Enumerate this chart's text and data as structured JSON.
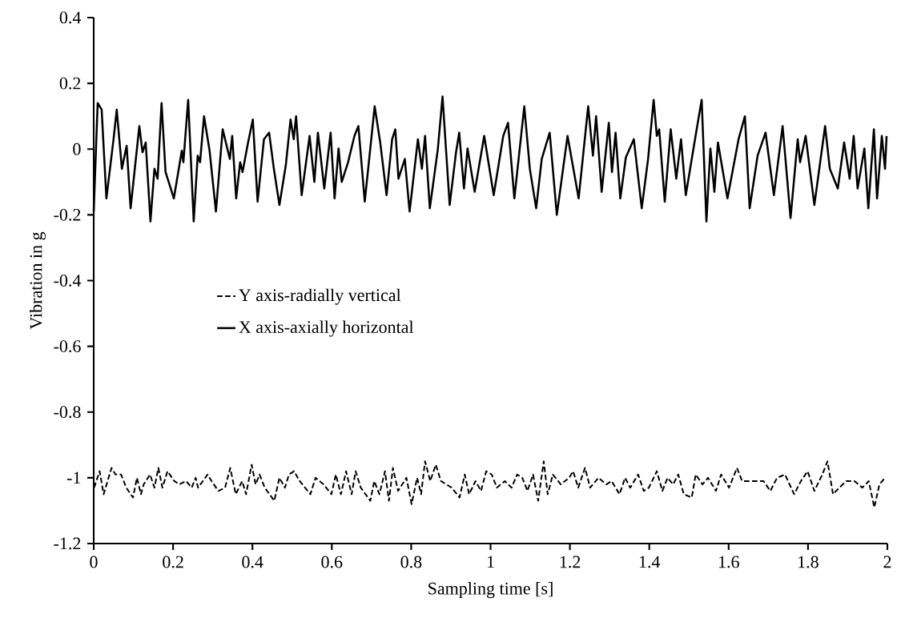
{
  "chart_data": {
    "type": "line",
    "xlabel": "Sampling time [s]",
    "ylabel": "Vibration in g",
    "xlim": [
      0,
      2
    ],
    "xticks": [
      0,
      0.2,
      0.4,
      0.6,
      0.8,
      1,
      1.2,
      1.4,
      1.6,
      1.8,
      2
    ],
    "ylim": [
      -1.2,
      0.4
    ],
    "yticks": [
      -1.2,
      -1,
      -0.8,
      -0.6,
      -0.4,
      -0.2,
      0,
      0.2,
      0.4
    ],
    "grid": false,
    "legend": "left",
    "marker": "none",
    "series": [
      {
        "name": "Y axis-radially vertical",
        "color": "#000000",
        "line_style": "dashed",
        "x": [
          0.001,
          0.015,
          0.025,
          0.045,
          0.055,
          0.069,
          0.082,
          0.099,
          0.109,
          0.119,
          0.126,
          0.142,
          0.153,
          0.163,
          0.173,
          0.186,
          0.203,
          0.216,
          0.233,
          0.247,
          0.257,
          0.263,
          0.287,
          0.297,
          0.314,
          0.331,
          0.344,
          0.358,
          0.374,
          0.384,
          0.398,
          0.408,
          0.418,
          0.431,
          0.455,
          0.468,
          0.482,
          0.492,
          0.505,
          0.519,
          0.546,
          0.559,
          0.579,
          0.599,
          0.61,
          0.623,
          0.636,
          0.65,
          0.66,
          0.673,
          0.697,
          0.707,
          0.72,
          0.734,
          0.744,
          0.754,
          0.767,
          0.788,
          0.801,
          0.815,
          0.825,
          0.835,
          0.848,
          0.862,
          0.875,
          0.902,
          0.922,
          0.935,
          0.946,
          0.962,
          0.976,
          0.989,
          1.003,
          1.016,
          1.036,
          1.053,
          1.067,
          1.08,
          1.093,
          1.107,
          1.12,
          1.134,
          1.144,
          1.157,
          1.177,
          1.198,
          1.208,
          1.221,
          1.238,
          1.251,
          1.272,
          1.292,
          1.305,
          1.325,
          1.339,
          1.352,
          1.372,
          1.386,
          1.399,
          1.419,
          1.433,
          1.446,
          1.46,
          1.473,
          1.487,
          1.507,
          1.517,
          1.534,
          1.548,
          1.568,
          1.581,
          1.601,
          1.621,
          1.634,
          1.655,
          1.688,
          1.705,
          1.722,
          1.742,
          1.765,
          1.782,
          1.799,
          1.816,
          1.836,
          1.849,
          1.863,
          1.879,
          1.896,
          1.917,
          1.937,
          1.953,
          1.967,
          1.98,
          1.994
        ],
        "values": [
          -1.03,
          -0.98,
          -1.05,
          -0.97,
          -0.99,
          -0.99,
          -1.03,
          -1.06,
          -1,
          -1.05,
          -1.02,
          -0.99,
          -1.03,
          -0.97,
          -1.03,
          -0.98,
          -1.01,
          -1.02,
          -1.01,
          -1.03,
          -1,
          -1.03,
          -0.99,
          -1.01,
          -1.04,
          -1.03,
          -0.97,
          -1.05,
          -1.01,
          -1.05,
          -0.96,
          -1.02,
          -0.99,
          -1.03,
          -1.07,
          -1,
          -1.03,
          -0.99,
          -0.98,
          -1.01,
          -1.05,
          -1,
          -1.02,
          -1.05,
          -0.99,
          -1.05,
          -0.98,
          -1.05,
          -0.98,
          -1.03,
          -1.07,
          -1.01,
          -1.05,
          -0.98,
          -1.07,
          -0.97,
          -1.04,
          -1,
          -1.08,
          -1,
          -1.05,
          -0.95,
          -1.01,
          -0.96,
          -1.01,
          -1.03,
          -1.06,
          -0.99,
          -1.05,
          -1.01,
          -1.04,
          -0.98,
          -0.99,
          -1.03,
          -1.01,
          -1.03,
          -0.99,
          -1,
          -1.04,
          -0.99,
          -1.07,
          -0.95,
          -1.05,
          -0.99,
          -1.02,
          -1,
          -0.98,
          -1.03,
          -0.97,
          -1.03,
          -1,
          -1.02,
          -1.01,
          -1.05,
          -1,
          -1.03,
          -0.99,
          -1.04,
          -1.03,
          -0.98,
          -1.04,
          -1,
          -1.02,
          -0.99,
          -1.05,
          -1.06,
          -0.99,
          -1.02,
          -1,
          -1.04,
          -0.99,
          -1.03,
          -0.97,
          -1.01,
          -1.01,
          -1.01,
          -1.04,
          -1,
          -0.99,
          -1.05,
          -1.01,
          -0.98,
          -1.04,
          -0.99,
          -0.95,
          -1.05,
          -1.03,
          -1.01,
          -1.01,
          -1.03,
          -1.01,
          -1.09,
          -1.02,
          -1
        ]
      },
      {
        "name": "X axis-axially horizontal",
        "color": "#000000",
        "line_style": "solid",
        "x": [
          0,
          0.01,
          0.02,
          0.032,
          0.05,
          0.058,
          0.071,
          0.083,
          0.093,
          0.115,
          0.123,
          0.131,
          0.143,
          0.153,
          0.161,
          0.171,
          0.181,
          0.202,
          0.222,
          0.226,
          0.238,
          0.252,
          0.262,
          0.268,
          0.278,
          0.292,
          0.308,
          0.325,
          0.343,
          0.349,
          0.359,
          0.369,
          0.375,
          0.389,
          0.401,
          0.413,
          0.429,
          0.442,
          0.454,
          0.468,
          0.484,
          0.496,
          0.504,
          0.51,
          0.524,
          0.544,
          0.556,
          0.565,
          0.581,
          0.597,
          0.607,
          0.617,
          0.625,
          0.641,
          0.657,
          0.667,
          0.683,
          0.708,
          0.722,
          0.738,
          0.752,
          0.76,
          0.768,
          0.784,
          0.796,
          0.817,
          0.827,
          0.835,
          0.847,
          0.867,
          0.879,
          0.897,
          0.913,
          0.921,
          0.933,
          0.942,
          0.96,
          0.984,
          1.008,
          1.032,
          1.044,
          1.06,
          1.085,
          1.099,
          1.115,
          1.129,
          1.149,
          1.167,
          1.194,
          1.222,
          1.246,
          1.258,
          1.266,
          1.28,
          1.298,
          1.306,
          1.315,
          1.327,
          1.341,
          1.361,
          1.381,
          1.397,
          1.411,
          1.419,
          1.425,
          1.439,
          1.454,
          1.468,
          1.48,
          1.492,
          1.518,
          1.532,
          1.544,
          1.554,
          1.564,
          1.573,
          1.597,
          1.625,
          1.641,
          1.653,
          1.673,
          1.693,
          1.714,
          1.736,
          1.756,
          1.774,
          1.78,
          1.794,
          1.816,
          1.843,
          1.855,
          1.875,
          1.891,
          1.905,
          1.915,
          1.925,
          1.942,
          1.952,
          1.966,
          1.974,
          1.986,
          1.994,
          1.998
        ],
        "values": [
          -0.19,
          0.14,
          0.12,
          -0.15,
          0.03,
          0.12,
          -0.06,
          0.01,
          -0.18,
          0.07,
          -0.01,
          0.02,
          -0.22,
          -0.06,
          -0.09,
          0.14,
          -0.07,
          -0.15,
          -0.005,
          -0.04,
          0.15,
          -0.22,
          -0.02,
          -0.04,
          0.1,
          -0.005,
          -0.19,
          0.06,
          -0.03,
          0.04,
          -0.15,
          -0.04,
          -0.07,
          0.02,
          0.09,
          -0.16,
          0.03,
          0.05,
          -0.06,
          -0.17,
          -0.05,
          0.09,
          0.03,
          0.1,
          -0.14,
          0.04,
          -0.1,
          0.05,
          -0.12,
          0.05,
          -0.15,
          0.002,
          -0.1,
          -0.04,
          0.04,
          0.07,
          -0.16,
          0.13,
          0.02,
          -0.14,
          0.03,
          0.06,
          -0.09,
          -0.03,
          -0.19,
          0.03,
          -0.06,
          0.04,
          -0.18,
          -0.002,
          0.16,
          -0.17,
          -0.01,
          0.05,
          -0.12,
          0.002,
          -0.13,
          0.04,
          -0.14,
          0.04,
          0.08,
          -0.15,
          0.13,
          -0.06,
          -0.18,
          -0.03,
          0.05,
          -0.2,
          0.04,
          -0.15,
          0.13,
          -0.02,
          0.1,
          -0.13,
          0.08,
          -0.07,
          0.05,
          -0.15,
          -0.025,
          0.03,
          -0.18,
          -0.03,
          0.15,
          0.04,
          0.06,
          -0.16,
          0.06,
          -0.09,
          0.03,
          -0.14,
          0.05,
          0.15,
          -0.22,
          0.002,
          -0.13,
          0.02,
          -0.15,
          0.03,
          0.1,
          -0.18,
          -0.02,
          0.05,
          -0.14,
          0.07,
          -0.21,
          0.03,
          -0.04,
          0.04,
          -0.17,
          0.07,
          -0.06,
          -0.12,
          0.02,
          -0.09,
          0.04,
          -0.12,
          0.002,
          -0.18,
          0.06,
          -0.15,
          0.04,
          -0.06,
          0.04
        ]
      }
    ]
  }
}
